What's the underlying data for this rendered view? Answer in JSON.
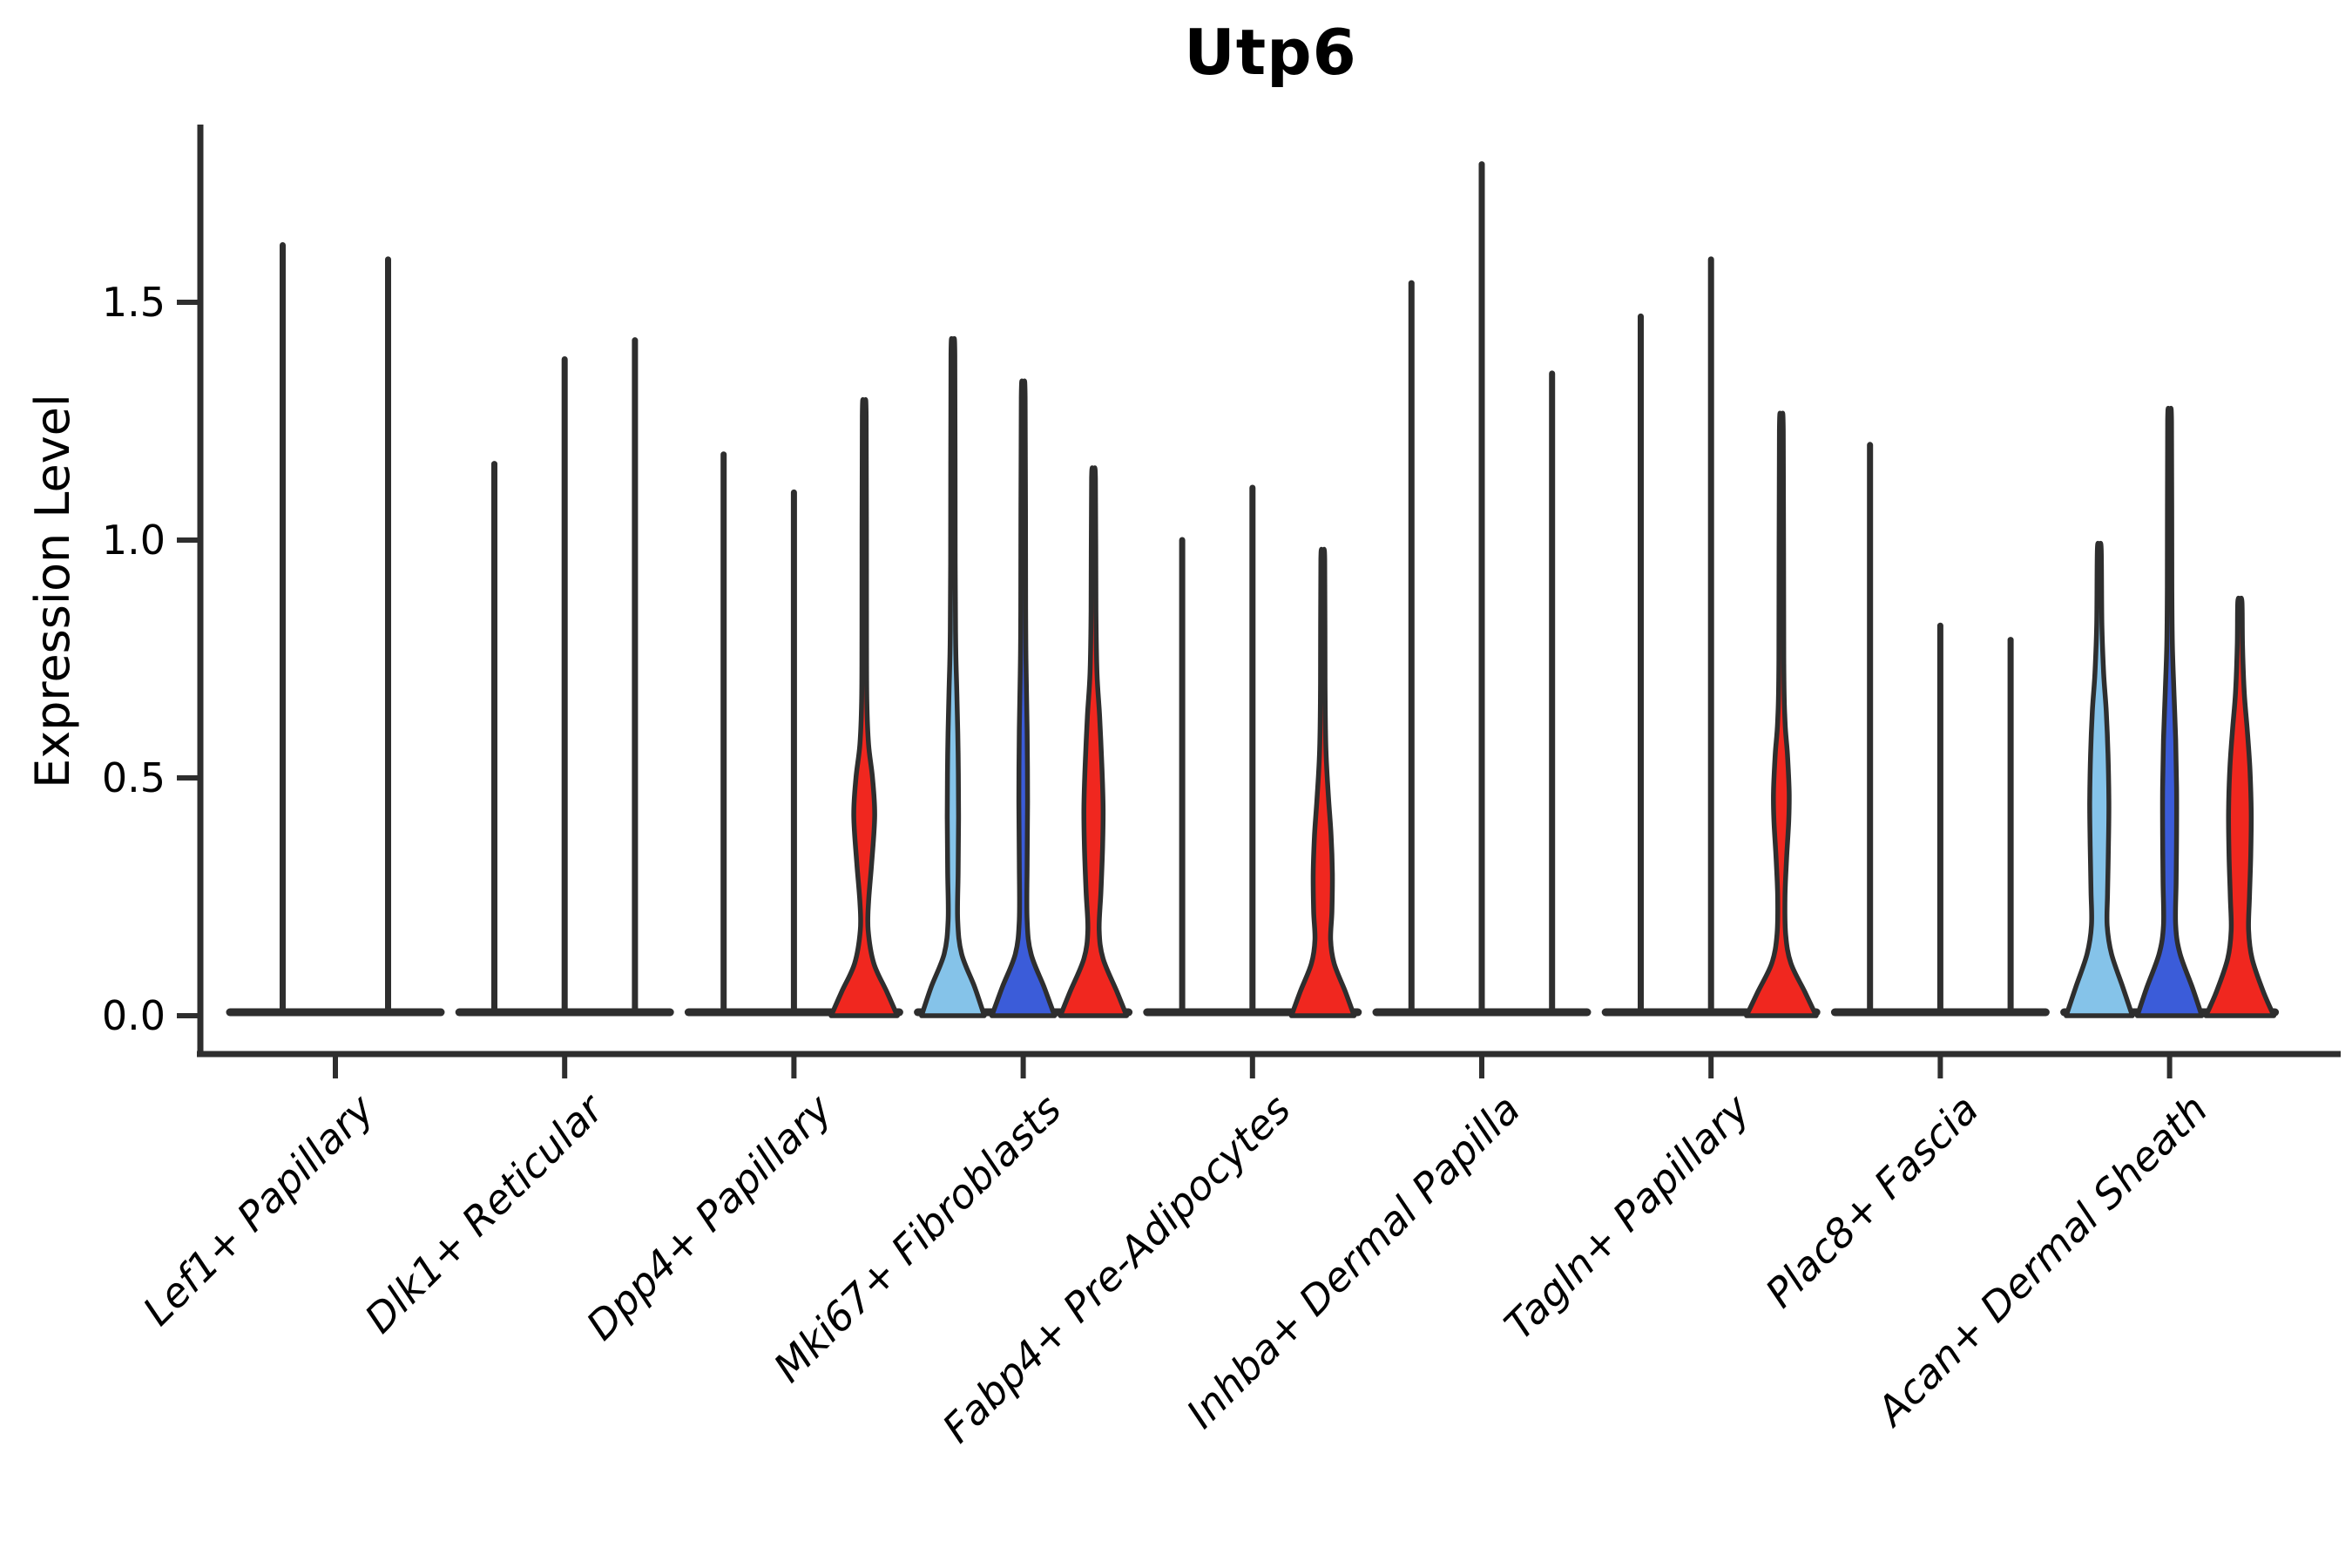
{
  "chart_data": {
    "type": "violin",
    "title": "Utp6",
    "ylabel": "Expression Level",
    "ylim": [
      -0.08,
      1.87
    ],
    "grid": false,
    "legend": null,
    "yticks": [
      0,
      0.5,
      1.0,
      1.5
    ],
    "ytick_labels": [
      "0.0",
      "0.5",
      "1.0",
      "1.5"
    ],
    "outline_color": "#2e2e2e",
    "group_colors": [
      "#85c3e9",
      "#3b5cd9",
      "#f0271f"
    ],
    "categories": [
      {
        "label": "Lef1+ Papillary",
        "violins": [
          {
            "group": 1,
            "max": 1.62,
            "fill": null,
            "profile": null
          },
          {
            "group": 2,
            "max": 1.59,
            "fill": null,
            "profile": null
          }
        ]
      },
      {
        "label": "Dlk1+ Reticular",
        "violins": [
          {
            "group": 1,
            "max": 1.16,
            "fill": null,
            "profile": null
          },
          {
            "group": 2,
            "max": 1.38,
            "fill": null,
            "profile": null
          },
          {
            "group": 3,
            "max": 1.42,
            "fill": null,
            "profile": null
          }
        ]
      },
      {
        "label": "Dpp4+ Papillary",
        "violins": [
          {
            "group": 1,
            "max": 1.18,
            "fill": null,
            "profile": null
          },
          {
            "group": 2,
            "max": 1.1,
            "fill": null,
            "profile": null
          },
          {
            "group": 3,
            "max": 1.26,
            "fill": "#f0271f",
            "profile": [
              [
                0,
                38
              ],
              [
                0.05,
                26
              ],
              [
                0.11,
                11
              ],
              [
                0.18,
                4.5
              ],
              [
                0.24,
                5
              ],
              [
                0.32,
                8.5
              ],
              [
                0.42,
                12
              ],
              [
                0.5,
                9.5
              ],
              [
                0.57,
                5
              ],
              [
                0.66,
                3
              ],
              [
                0.8,
                2.6
              ],
              [
                1.26,
                2.2
              ]
            ]
          }
        ]
      },
      {
        "label": "Mki67+ Fibroblasts",
        "violins": [
          {
            "group": 1,
            "max": 1.39,
            "fill": "#85c3e9",
            "profile": [
              [
                0,
                36
              ],
              [
                0.06,
                25
              ],
              [
                0.13,
                10
              ],
              [
                0.2,
                5.5
              ],
              [
                0.3,
                6
              ],
              [
                0.42,
                6.5
              ],
              [
                0.55,
                6
              ],
              [
                0.68,
                4.5
              ],
              [
                0.78,
                3.2
              ],
              [
                0.95,
                2.6
              ],
              [
                1.39,
                2.2
              ]
            ]
          },
          {
            "group": 2,
            "max": 1.3,
            "fill": "#3b5cd9",
            "profile": [
              [
                0,
                36
              ],
              [
                0.06,
                24
              ],
              [
                0.13,
                9
              ],
              [
                0.2,
                4.5
              ],
              [
                0.32,
                4.5
              ],
              [
                0.45,
                5
              ],
              [
                0.6,
                4.5
              ],
              [
                0.72,
                3.4
              ],
              [
                0.85,
                2.8
              ],
              [
                1.3,
                2.2
              ]
            ]
          },
          {
            "group": 3,
            "max": 1.13,
            "fill": "#f0271f",
            "profile": [
              [
                0,
                38
              ],
              [
                0.05,
                27
              ],
              [
                0.12,
                11
              ],
              [
                0.18,
                6.5
              ],
              [
                0.26,
                8.5
              ],
              [
                0.36,
                10.5
              ],
              [
                0.44,
                11
              ],
              [
                0.53,
                9.5
              ],
              [
                0.63,
                7
              ],
              [
                0.72,
                4
              ],
              [
                0.85,
                2.8
              ],
              [
                1.13,
                2.2
              ]
            ]
          }
        ]
      },
      {
        "label": "Fabp4+ Pre-Adipocytes",
        "violins": [
          {
            "group": 1,
            "max": 1.0,
            "fill": null,
            "profile": null
          },
          {
            "group": 2,
            "max": 1.11,
            "fill": null,
            "profile": null
          },
          {
            "group": 3,
            "max": 0.96,
            "fill": "#f0271f",
            "profile": [
              [
                0,
                36
              ],
              [
                0.05,
                26
              ],
              [
                0.11,
                13
              ],
              [
                0.16,
                9
              ],
              [
                0.22,
                10.5
              ],
              [
                0.3,
                11
              ],
              [
                0.38,
                9.5
              ],
              [
                0.46,
                6.5
              ],
              [
                0.56,
                3.6
              ],
              [
                0.7,
                2.6
              ],
              [
                0.96,
                2.2
              ]
            ]
          }
        ]
      },
      {
        "label": "Inhba+ Dermal Papilla",
        "violins": [
          {
            "group": 1,
            "max": 1.54,
            "fill": null,
            "profile": null
          },
          {
            "group": 2,
            "max": 1.79,
            "fill": null,
            "profile": null
          },
          {
            "group": 3,
            "max": 1.35,
            "fill": null,
            "profile": null
          }
        ]
      },
      {
        "label": "Tagln+ Papillary",
        "violins": [
          {
            "group": 1,
            "max": 1.47,
            "fill": null,
            "profile": null
          },
          {
            "group": 2,
            "max": 1.59,
            "fill": null,
            "profile": null
          },
          {
            "group": 3,
            "max": 1.23,
            "fill": "#f0271f",
            "profile": [
              [
                0,
                40
              ],
              [
                0.05,
                27
              ],
              [
                0.11,
                11
              ],
              [
                0.17,
                5
              ],
              [
                0.25,
                4.2
              ],
              [
                0.33,
                6
              ],
              [
                0.41,
                8.5
              ],
              [
                0.47,
                9
              ],
              [
                0.55,
                7
              ],
              [
                0.62,
                4.2
              ],
              [
                0.75,
                2.8
              ],
              [
                1.23,
                2.2
              ]
            ]
          }
        ]
      },
      {
        "label": "Plac8+ Fascia",
        "violins": [
          {
            "group": 1,
            "max": 1.2,
            "fill": null,
            "profile": null
          },
          {
            "group": 2,
            "max": 0.82,
            "fill": null,
            "profile": null
          },
          {
            "group": 3,
            "max": 0.79,
            "fill": null,
            "profile": null
          }
        ]
      },
      {
        "label": "Acan+ Dermal Sheath",
        "violins": [
          {
            "group": 1,
            "max": 0.98,
            "fill": "#85c3e9",
            "profile": [
              [
                0,
                38
              ],
              [
                0.06,
                27
              ],
              [
                0.13,
                14
              ],
              [
                0.19,
                9
              ],
              [
                0.26,
                9.5
              ],
              [
                0.36,
                10.5
              ],
              [
                0.45,
                11
              ],
              [
                0.55,
                10
              ],
              [
                0.64,
                8
              ],
              [
                0.72,
                5
              ],
              [
                0.82,
                3
              ],
              [
                0.98,
                2.2
              ]
            ]
          },
          {
            "group": 2,
            "max": 1.25,
            "fill": "#3b5cd9",
            "profile": [
              [
                0,
                37
              ],
              [
                0.06,
                26
              ],
              [
                0.13,
                12
              ],
              [
                0.19,
                7
              ],
              [
                0.28,
                7.5
              ],
              [
                0.38,
                8
              ],
              [
                0.48,
                8
              ],
              [
                0.58,
                7
              ],
              [
                0.68,
                5
              ],
              [
                0.78,
                3.2
              ],
              [
                0.9,
                2.6
              ],
              [
                1.25,
                2.2
              ]
            ]
          },
          {
            "group": 3,
            "max": 0.87,
            "fill": "#f0271f",
            "profile": [
              [
                0,
                39
              ],
              [
                0.05,
                27
              ],
              [
                0.12,
                14
              ],
              [
                0.18,
                10
              ],
              [
                0.25,
                11
              ],
              [
                0.34,
                12.5
              ],
              [
                0.43,
                13
              ],
              [
                0.52,
                11.5
              ],
              [
                0.6,
                8.5
              ],
              [
                0.68,
                5
              ],
              [
                0.78,
                3
              ],
              [
                0.87,
                2.4
              ]
            ]
          }
        ]
      }
    ]
  }
}
